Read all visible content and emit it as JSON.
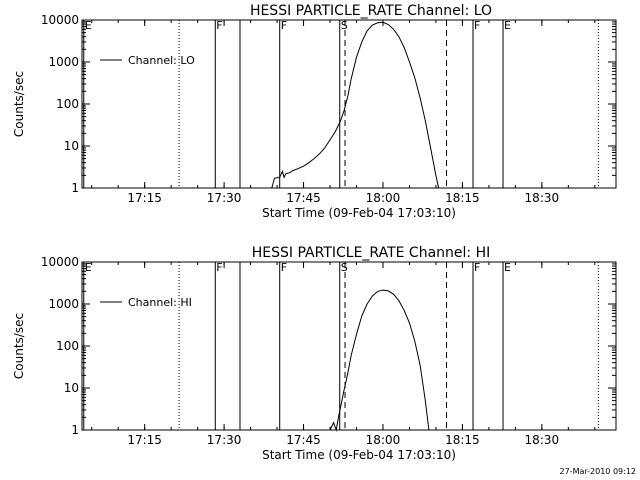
{
  "footer": {
    "timestamp": "27-Mar-2010 09:12"
  },
  "chart_data": [
    {
      "type": "line",
      "title": "HESSI PARTICLE_RATE Channel: LO",
      "xlabel": "Start Time (09-Feb-04 17:03:10)",
      "ylabel": "Counts/sec",
      "y_scale": "log",
      "ylim": [
        1,
        10000
      ],
      "xlim": [
        "17:03:10",
        "18:44:00"
      ],
      "x_ticks": [
        "17:15",
        "17:30",
        "17:45",
        "18:00",
        "18:15",
        "18:30"
      ],
      "y_ticks": [
        "1",
        "10",
        "100",
        "1000",
        "10000"
      ],
      "legend": {
        "position": "top-left",
        "entries": [
          "Channel: LO"
        ]
      },
      "series": [
        {
          "name": "Channel: LO",
          "x": [
            "17:39:00",
            "17:39:30",
            "17:40:30",
            "17:41:00",
            "17:41:20",
            "17:41:40",
            "17:42:20",
            "17:43:00",
            "17:44:00",
            "17:45:00",
            "17:46:00",
            "17:47:00",
            "17:48:00",
            "17:49:00",
            "17:50:00",
            "17:51:00",
            "17:52:00",
            "17:52:40",
            "17:53:20",
            "17:54:00",
            "17:55:00",
            "17:56:00",
            "17:57:00",
            "17:58:00",
            "17:59:00",
            "18:00:00",
            "18:01:00",
            "18:02:00",
            "18:03:00",
            "18:04:00",
            "18:05:00",
            "18:06:00",
            "18:07:00",
            "18:08:00",
            "18:09:00",
            "18:10:00",
            "18:10:30"
          ],
          "y": [
            1.0,
            1.7,
            1.8,
            2.5,
            1.8,
            2.2,
            2.3,
            2.6,
            2.9,
            3.3,
            4.0,
            5.0,
            6.5,
            9.0,
            14,
            22,
            40,
            70,
            150,
            400,
            1300,
            3000,
            5500,
            7600,
            8600,
            8800,
            7800,
            6000,
            4000,
            2200,
            1000,
            420,
            140,
            40,
            9.0,
            2.0,
            1.0
          ]
        }
      ],
      "markers": [
        {
          "time": "17:03:30",
          "style": "solid",
          "label": "E"
        },
        {
          "time": "17:21:30",
          "style": "dotted",
          "label": ""
        },
        {
          "time": "17:28:20",
          "style": "solid",
          "label": "F"
        },
        {
          "time": "17:33:00",
          "style": "solid",
          "label": ""
        },
        {
          "time": "17:40:30",
          "style": "solid",
          "label": "F"
        },
        {
          "time": "17:51:50",
          "style": "solid",
          "label": "S"
        },
        {
          "time": "17:52:50",
          "style": "dashed",
          "label": ""
        },
        {
          "time": "18:12:00",
          "style": "dashed",
          "label": ""
        },
        {
          "time": "18:17:00",
          "style": "solid",
          "label": "F"
        },
        {
          "time": "18:22:40",
          "style": "solid",
          "label": "E"
        },
        {
          "time": "18:40:40",
          "style": "dotted",
          "label": ""
        }
      ]
    },
    {
      "type": "line",
      "title": "HESSI PARTICLE_RATE Channel: HI",
      "xlabel": "Start Time (09-Feb-04 17:03:10)",
      "ylabel": "Counts/sec",
      "y_scale": "log",
      "ylim": [
        1,
        10000
      ],
      "xlim": [
        "17:03:10",
        "18:44:00"
      ],
      "x_ticks": [
        "17:15",
        "17:30",
        "17:45",
        "18:00",
        "18:15",
        "18:30"
      ],
      "y_ticks": [
        "1",
        "10",
        "100",
        "1000",
        "10000"
      ],
      "legend": {
        "position": "top-left",
        "entries": [
          "Channel: HI"
        ]
      },
      "series": [
        {
          "name": "Channel: HI",
          "x": [
            "17:50:00",
            "17:50:40",
            "17:51:10",
            "17:51:40",
            "17:52:10",
            "17:52:40",
            "17:53:20",
            "17:54:00",
            "17:55:00",
            "17:56:00",
            "17:57:00",
            "17:58:00",
            "17:59:00",
            "18:00:00",
            "18:01:00",
            "18:02:00",
            "18:03:00",
            "18:04:00",
            "18:05:00",
            "18:06:00",
            "18:07:00",
            "18:08:00",
            "18:08:40"
          ],
          "y": [
            1.0,
            1.5,
            1.0,
            2.2,
            4.5,
            9.0,
            22,
            60,
            190,
            520,
            1000,
            1550,
            2000,
            2150,
            2050,
            1700,
            1200,
            700,
            350,
            130,
            35,
            5.0,
            1.0
          ]
        }
      ],
      "markers": [
        {
          "time": "17:03:30",
          "style": "solid",
          "label": "E"
        },
        {
          "time": "17:21:30",
          "style": "dotted",
          "label": ""
        },
        {
          "time": "17:28:20",
          "style": "solid",
          "label": "F"
        },
        {
          "time": "17:33:00",
          "style": "solid",
          "label": ""
        },
        {
          "time": "17:40:30",
          "style": "solid",
          "label": "F"
        },
        {
          "time": "17:51:50",
          "style": "solid",
          "label": "S"
        },
        {
          "time": "17:52:50",
          "style": "dashed",
          "label": ""
        },
        {
          "time": "18:12:00",
          "style": "dashed",
          "label": ""
        },
        {
          "time": "18:17:00",
          "style": "solid",
          "label": "F"
        },
        {
          "time": "18:22:40",
          "style": "solid",
          "label": "E"
        },
        {
          "time": "18:40:40",
          "style": "dotted",
          "label": ""
        }
      ]
    }
  ]
}
